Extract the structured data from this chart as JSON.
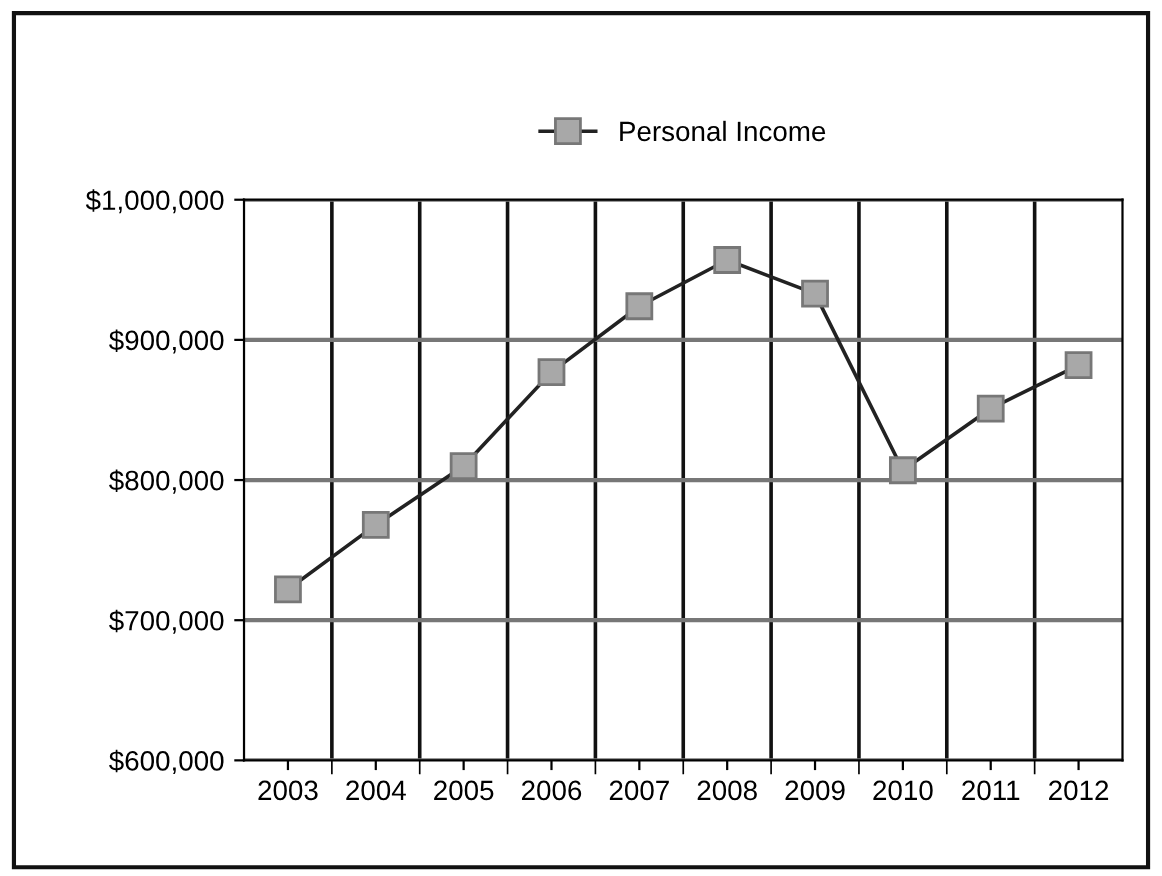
{
  "chart_data": {
    "type": "line",
    "categories": [
      "2003",
      "2004",
      "2005",
      "2006",
      "2007",
      "2008",
      "2009",
      "2010",
      "2011",
      "2012"
    ],
    "series": [
      {
        "name": "Personal Income",
        "color": "#222222",
        "values": [
          722000,
          768000,
          810000,
          877000,
          924000,
          957000,
          933000,
          807000,
          851000,
          882000
        ]
      }
    ],
    "ylim": [
      600000,
      1000000
    ],
    "yticks": [
      {
        "value": 600000,
        "label": "$600,000"
      },
      {
        "value": 700000,
        "label": "$700,000"
      },
      {
        "value": 800000,
        "label": "$800,000"
      },
      {
        "value": 900000,
        "label": "$900,000"
      },
      {
        "value": 1000000,
        "label": "$1,000,000"
      }
    ],
    "grid": true,
    "legend": "top",
    "marker": "square",
    "line_style": "solid"
  }
}
